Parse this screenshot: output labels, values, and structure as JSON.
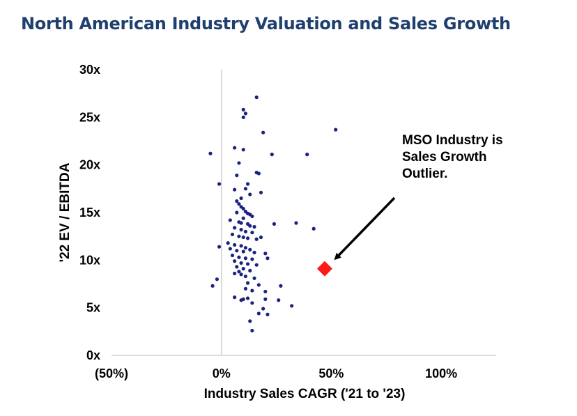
{
  "title": "North American Industry Valuation and Sales Growth",
  "chart_data": {
    "type": "scatter",
    "title": "North American Industry Valuation and Sales Growth",
    "xlabel": "Industry Sales CAGR ('21 to '23)",
    "ylabel": "'22 EV / EBITDA",
    "xlim": [
      -50,
      125
    ],
    "ylim": [
      0,
      30
    ],
    "x_ticks": [
      -50,
      0,
      50,
      100
    ],
    "x_tick_labels": [
      "(50%)",
      "0%",
      "50%",
      "100%"
    ],
    "y_ticks": [
      0,
      5,
      10,
      15,
      20,
      25,
      30
    ],
    "y_tick_labels": [
      "0x",
      "5x",
      "10x",
      "15x",
      "20x",
      "25x",
      "30x"
    ],
    "grid": false,
    "series": [
      {
        "color": "#1a237e",
        "marker": "circle",
        "points": [
          [
            16,
            27.1
          ],
          [
            10,
            25.8
          ],
          [
            11,
            25.4
          ],
          [
            10,
            25.0
          ],
          [
            52,
            23.7
          ],
          [
            19,
            23.4
          ],
          [
            -5,
            21.2
          ],
          [
            6,
            21.8
          ],
          [
            10,
            21.6
          ],
          [
            23,
            21.1
          ],
          [
            39,
            21.1
          ],
          [
            8,
            20.2
          ],
          [
            16,
            19.2
          ],
          [
            17,
            19.1
          ],
          [
            7,
            18.9
          ],
          [
            -1,
            18.0
          ],
          [
            12,
            18.0
          ],
          [
            11,
            17.5
          ],
          [
            6,
            17.4
          ],
          [
            18,
            17.1
          ],
          [
            13,
            16.9
          ],
          [
            9,
            16.5
          ],
          [
            7,
            16.2
          ],
          [
            8,
            15.9
          ],
          [
            9,
            15.6
          ],
          [
            10,
            15.4
          ],
          [
            11,
            15.1
          ],
          [
            7,
            15.0
          ],
          [
            12,
            14.9
          ],
          [
            13,
            14.8
          ],
          [
            14,
            14.6
          ],
          [
            10,
            14.4
          ],
          [
            4,
            14.2
          ],
          [
            8,
            14.0
          ],
          [
            9,
            13.9
          ],
          [
            12,
            13.8
          ],
          [
            13,
            13.6
          ],
          [
            15,
            13.5
          ],
          [
            24,
            13.8
          ],
          [
            34,
            13.9
          ],
          [
            42,
            13.3
          ],
          [
            6,
            13.4
          ],
          [
            9,
            13.2
          ],
          [
            11,
            13.0
          ],
          [
            14,
            12.9
          ],
          [
            5,
            12.7
          ],
          [
            8,
            12.5
          ],
          [
            10,
            12.4
          ],
          [
            12,
            12.3
          ],
          [
            16,
            12.2
          ],
          [
            18,
            12.4
          ],
          [
            3,
            11.8
          ],
          [
            6,
            11.6
          ],
          [
            9,
            11.5
          ],
          [
            11,
            11.3
          ],
          [
            13,
            11.1
          ],
          [
            -1,
            11.4
          ],
          [
            4,
            11.2
          ],
          [
            7,
            11.0
          ],
          [
            10,
            10.9
          ],
          [
            15,
            10.8
          ],
          [
            20,
            10.7
          ],
          [
            5,
            10.5
          ],
          [
            8,
            10.3
          ],
          [
            11,
            10.2
          ],
          [
            14,
            10.1
          ],
          [
            21,
            10.2
          ],
          [
            6,
            9.9
          ],
          [
            9,
            9.7
          ],
          [
            12,
            9.6
          ],
          [
            16,
            9.5
          ],
          [
            7,
            9.3
          ],
          [
            10,
            9.1
          ],
          [
            13,
            8.9
          ],
          [
            8,
            8.8
          ],
          [
            6,
            8.6
          ],
          [
            9,
            8.5
          ],
          [
            11,
            8.3
          ],
          [
            15,
            8.1
          ],
          [
            -2,
            8.0
          ],
          [
            -4,
            7.3
          ],
          [
            12,
            7.6
          ],
          [
            17,
            7.4
          ],
          [
            27,
            7.3
          ],
          [
            11,
            7.0
          ],
          [
            14,
            6.8
          ],
          [
            20,
            6.7
          ],
          [
            6,
            6.1
          ],
          [
            10,
            5.9
          ],
          [
            12,
            6.0
          ],
          [
            9,
            5.8
          ],
          [
            20,
            5.9
          ],
          [
            26,
            5.8
          ],
          [
            14,
            5.5
          ],
          [
            32,
            5.2
          ],
          [
            19,
            4.9
          ],
          [
            17,
            4.4
          ],
          [
            21,
            4.3
          ],
          [
            13,
            3.6
          ],
          [
            14,
            2.6
          ]
        ]
      },
      {
        "name": "MSO Industry",
        "color": "#ff1a1a",
        "marker": "diamond",
        "points": [
          [
            47,
            9.1
          ]
        ]
      }
    ],
    "annotation": {
      "lines": [
        "MSO Industry is",
        "Sales Growth",
        "Outlier."
      ],
      "target": [
        47,
        9.1
      ]
    }
  }
}
